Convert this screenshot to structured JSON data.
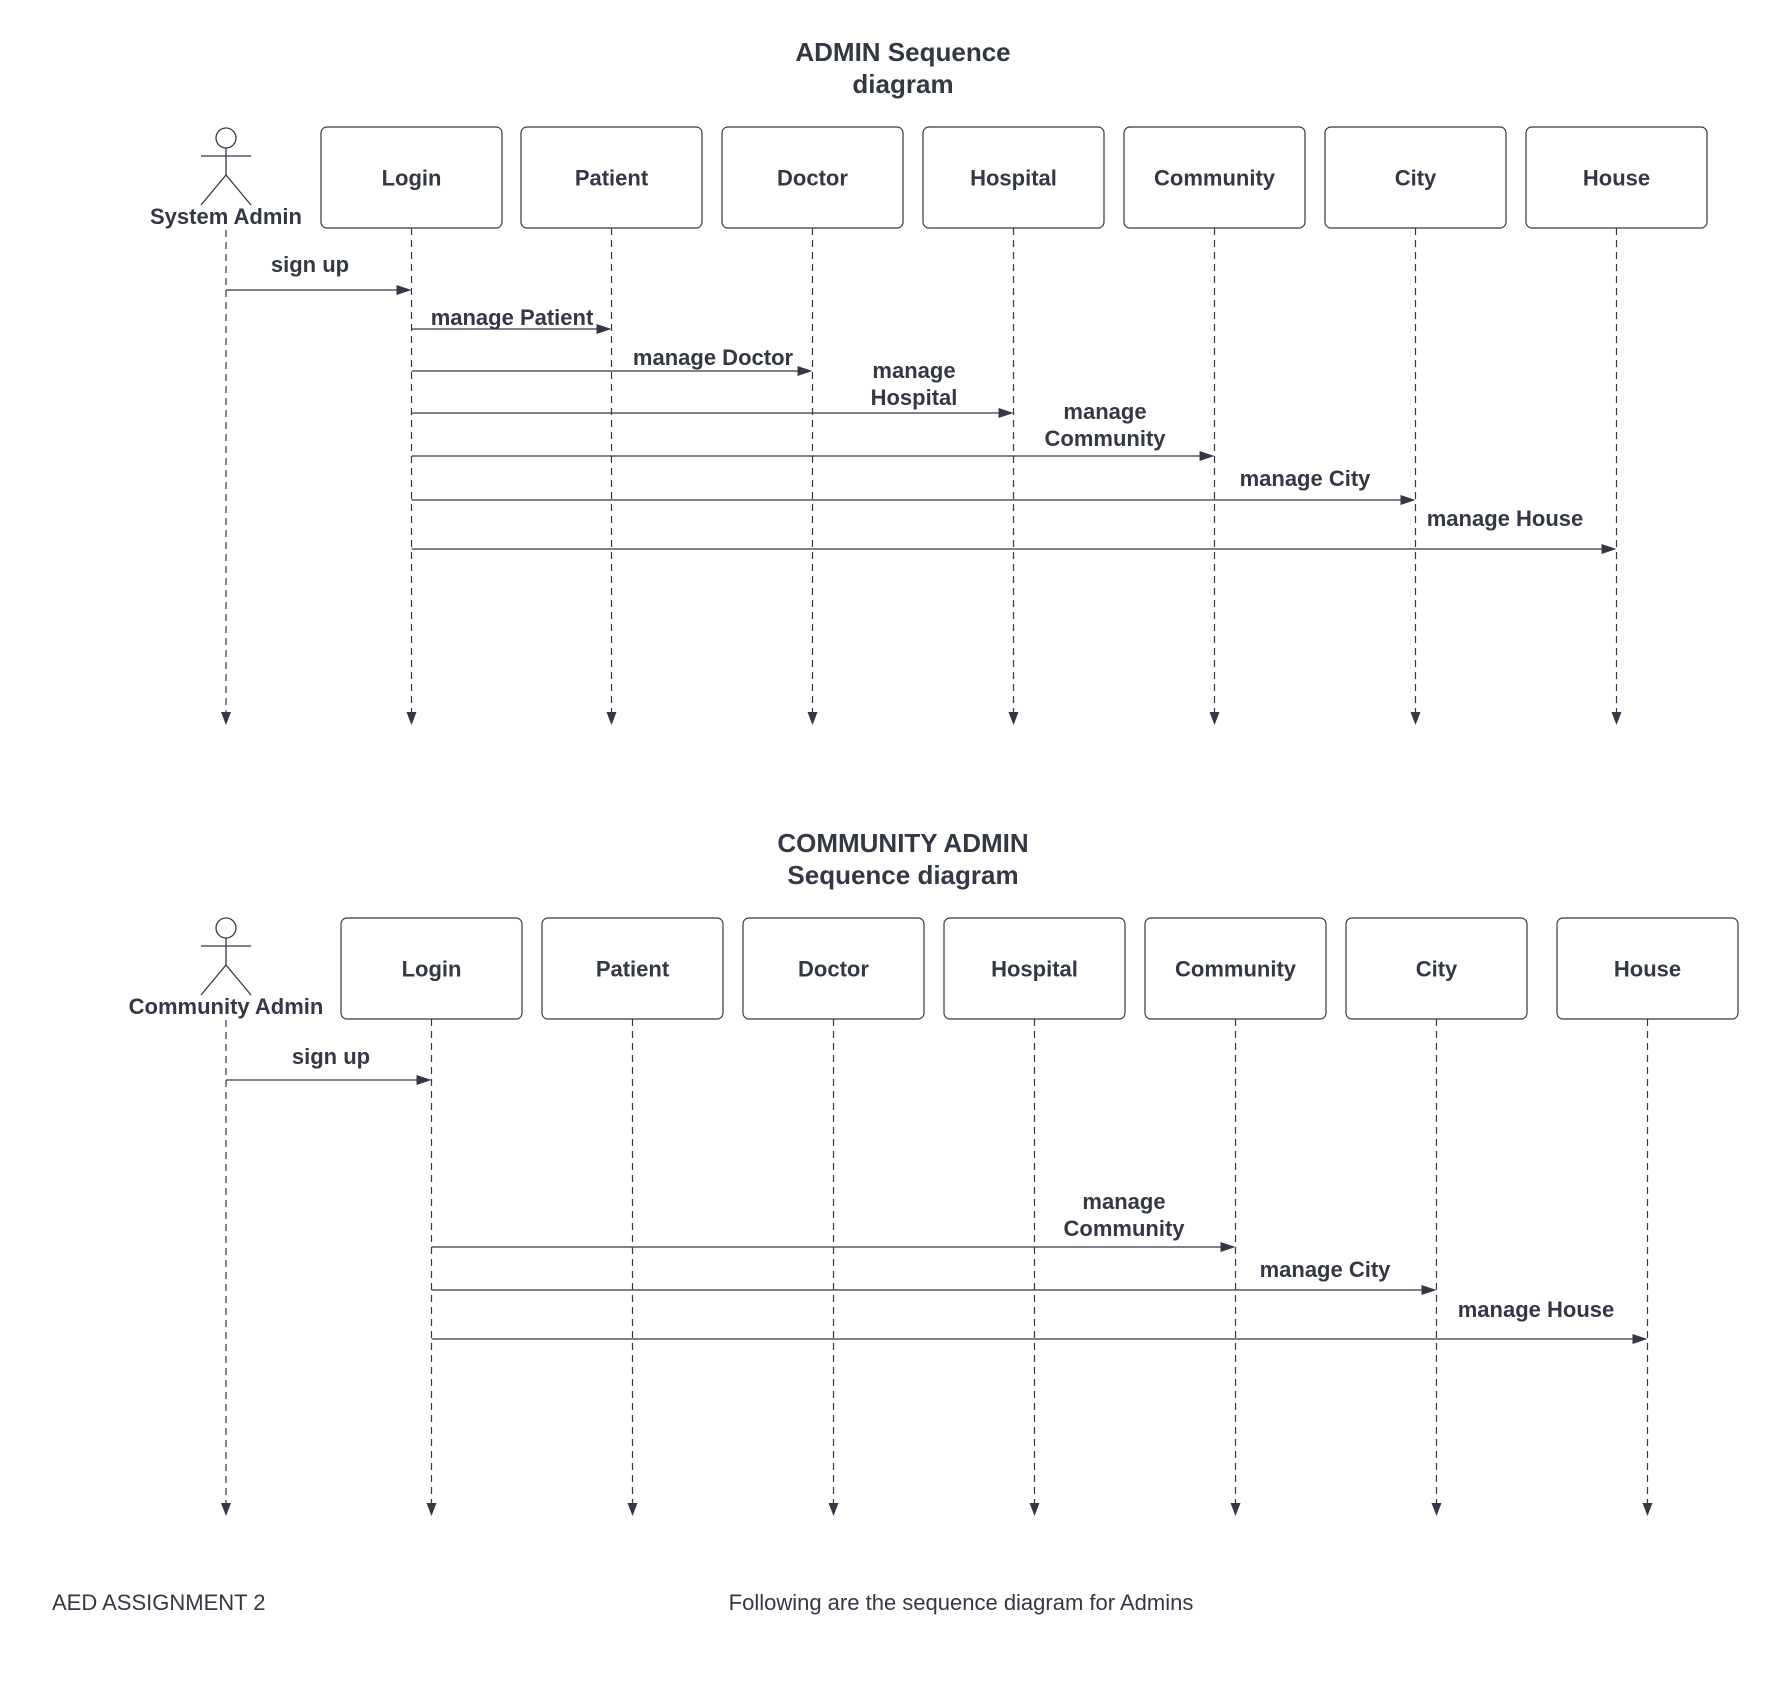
{
  "colors": {
    "ink": "#333844",
    "background": "#ffffff"
  },
  "diagrams": [
    {
      "id": "admin",
      "title": [
        "ADMIN Sequence",
        "diagram"
      ],
      "actor": {
        "label": "System Admin"
      },
      "participants": [
        "Login",
        "Patient",
        "Doctor",
        "Hospital",
        "Community",
        "City",
        "House"
      ],
      "messages": [
        {
          "from": "actor",
          "to": 0,
          "label": [
            "sign up"
          ]
        },
        {
          "from": 0,
          "to": 1,
          "label": [
            "manage Patient"
          ]
        },
        {
          "from": 0,
          "to": 2,
          "label": [
            "manage Doctor"
          ]
        },
        {
          "from": 0,
          "to": 3,
          "label": [
            "manage",
            "Hospital"
          ]
        },
        {
          "from": 0,
          "to": 4,
          "label": [
            "manage",
            "Community"
          ]
        },
        {
          "from": 0,
          "to": 5,
          "label": [
            "manage City"
          ]
        },
        {
          "from": 0,
          "to": 6,
          "label": [
            "manage House"
          ]
        }
      ]
    },
    {
      "id": "community-admin",
      "title": [
        "COMMUNITY ADMIN",
        "Sequence diagram"
      ],
      "actor": {
        "label": "Community  Admin"
      },
      "participants": [
        "Login",
        "Patient",
        "Doctor",
        "Hospital",
        "Community",
        "City",
        "House"
      ],
      "messages": [
        {
          "from": "actor",
          "to": 0,
          "label": [
            "sign up"
          ]
        },
        {
          "from": 0,
          "to": 4,
          "label": [
            "manage",
            "Community"
          ]
        },
        {
          "from": 0,
          "to": 5,
          "label": [
            "manage City"
          ]
        },
        {
          "from": 0,
          "to": 6,
          "label": [
            "manage House"
          ]
        }
      ]
    }
  ],
  "footer": {
    "left": "AED ASSIGNMENT 2",
    "center": "Following are the sequence diagram for Admins"
  }
}
